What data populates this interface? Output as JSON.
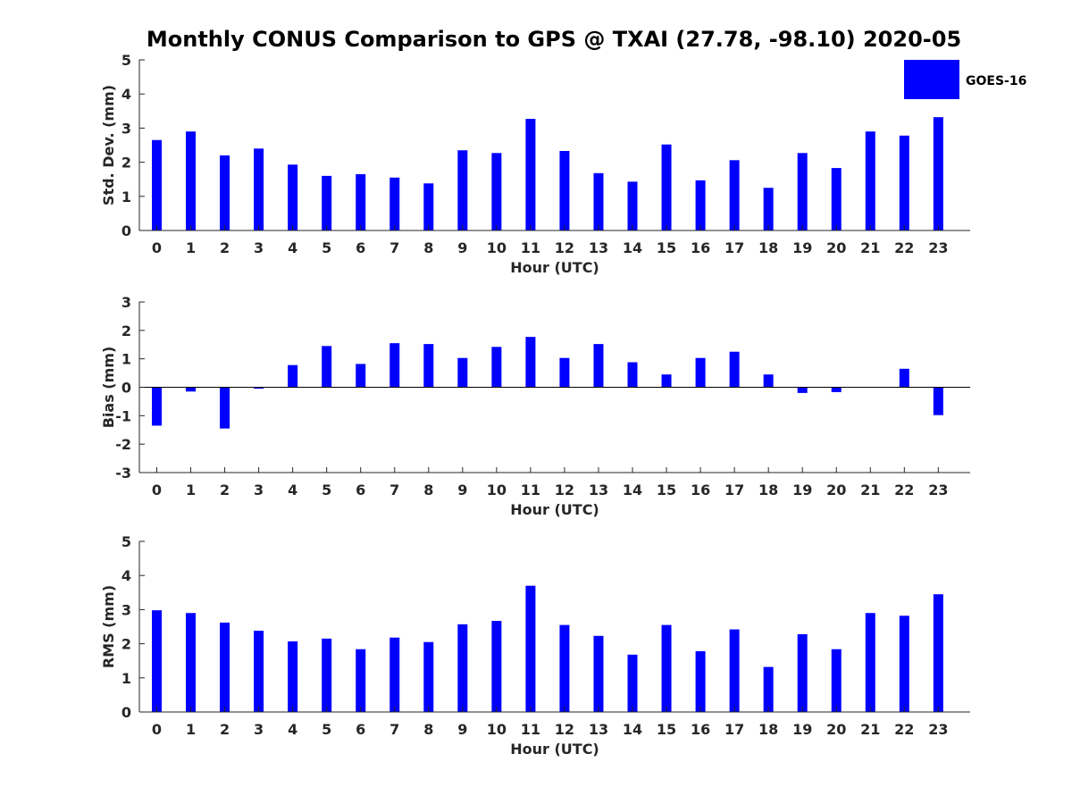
{
  "title": "Monthly CONUS Comparison to GPS @ TXAI (27.78, -98.10) 2020-05",
  "colors": {
    "bar": "#0000FF",
    "axis": "#262626",
    "background": "#FFFFFF"
  },
  "legend": {
    "label": "GOES-16",
    "placement": "top-right"
  },
  "chart_data": [
    {
      "type": "bar",
      "title": "",
      "series_name": "GOES-16",
      "xlabel": "Hour (UTC)",
      "ylabel": "Std. Dev. (mm)",
      "ylim": [
        0,
        5
      ],
      "yticks": [
        0,
        1,
        2,
        3,
        4,
        5
      ],
      "categories": [
        "0",
        "1",
        "2",
        "3",
        "4",
        "5",
        "6",
        "7",
        "8",
        "9",
        "10",
        "11",
        "12",
        "13",
        "14",
        "15",
        "16",
        "17",
        "18",
        "19",
        "20",
        "21",
        "22",
        "23"
      ],
      "values": [
        2.65,
        2.9,
        2.2,
        2.4,
        1.93,
        1.6,
        1.65,
        1.55,
        1.38,
        2.35,
        2.27,
        3.27,
        2.33,
        1.68,
        1.43,
        2.52,
        1.47,
        2.06,
        1.25,
        2.27,
        1.83,
        2.9,
        2.78,
        3.32
      ]
    },
    {
      "type": "bar",
      "title": "",
      "series_name": "GOES-16",
      "xlabel": "Hour (UTC)",
      "ylabel": "Bias (mm)",
      "ylim": [
        -3,
        3
      ],
      "yticks": [
        -3,
        -2,
        -1,
        0,
        1,
        2,
        3
      ],
      "categories": [
        "0",
        "1",
        "2",
        "3",
        "4",
        "5",
        "6",
        "7",
        "8",
        "9",
        "10",
        "11",
        "12",
        "13",
        "14",
        "15",
        "16",
        "17",
        "18",
        "19",
        "20",
        "21",
        "22",
        "23"
      ],
      "values": [
        -1.35,
        -0.15,
        -1.45,
        -0.05,
        0.78,
        1.45,
        0.82,
        1.55,
        1.52,
        1.03,
        1.42,
        1.77,
        1.03,
        1.52,
        0.88,
        0.45,
        1.03,
        1.25,
        0.45,
        -0.2,
        -0.17,
        0.0,
        0.65,
        -0.98
      ]
    },
    {
      "type": "bar",
      "title": "",
      "series_name": "GOES-16",
      "xlabel": "Hour (UTC)",
      "ylabel": "RMS (mm)",
      "ylim": [
        0,
        5
      ],
      "yticks": [
        0,
        1,
        2,
        3,
        4,
        5
      ],
      "categories": [
        "0",
        "1",
        "2",
        "3",
        "4",
        "5",
        "6",
        "7",
        "8",
        "9",
        "10",
        "11",
        "12",
        "13",
        "14",
        "15",
        "16",
        "17",
        "18",
        "19",
        "20",
        "21",
        "22",
        "23"
      ],
      "values": [
        2.98,
        2.9,
        2.62,
        2.38,
        2.07,
        2.15,
        1.84,
        2.18,
        2.05,
        2.57,
        2.67,
        3.7,
        2.55,
        2.23,
        1.68,
        2.55,
        1.78,
        2.42,
        1.32,
        2.28,
        1.84,
        2.9,
        2.82,
        3.45
      ]
    }
  ]
}
